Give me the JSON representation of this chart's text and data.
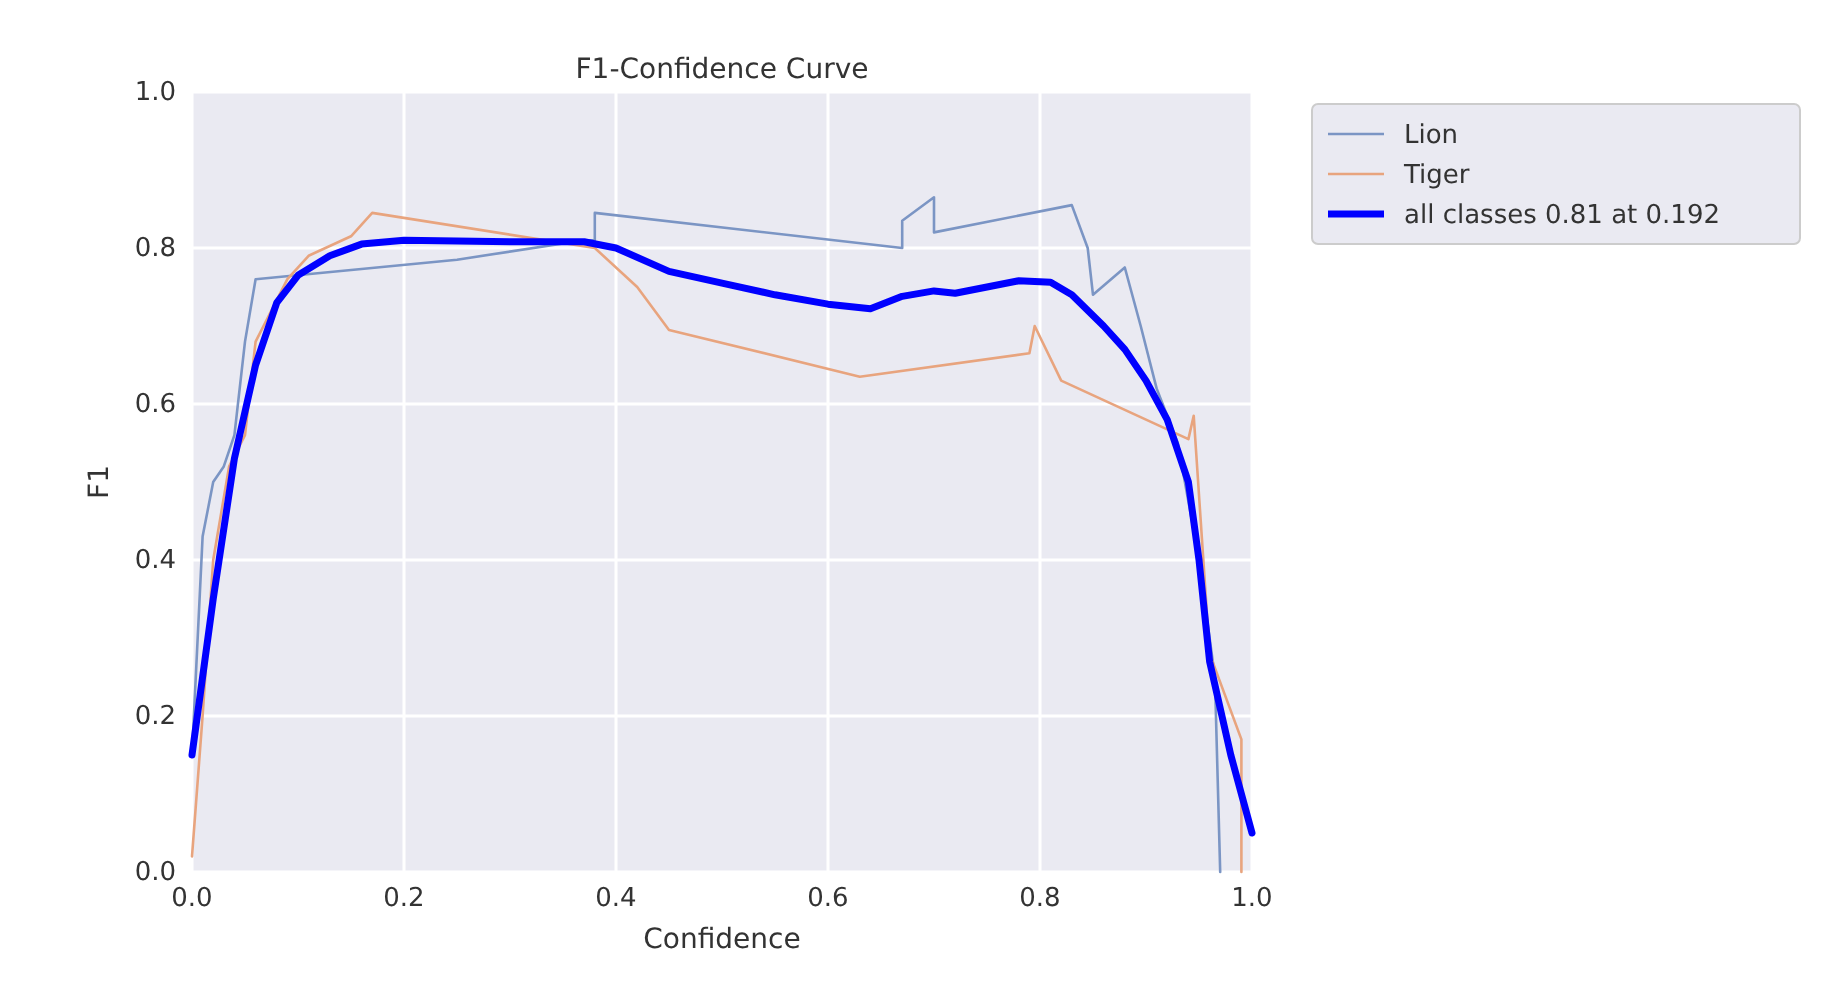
{
  "chart_data": {
    "type": "line",
    "title": "F1-Confidence Curve",
    "xlabel": "Confidence",
    "ylabel": "F1",
    "xlim": [
      0,
      1
    ],
    "ylim": [
      0,
      1
    ],
    "xticks": [
      {
        "value": 0,
        "label": "0.0"
      },
      {
        "value": 0.2,
        "label": "0.2"
      },
      {
        "value": 0.4,
        "label": "0.4"
      },
      {
        "value": 0.6,
        "label": "0.6"
      },
      {
        "value": 0.8,
        "label": "0.8"
      },
      {
        "value": 1,
        "label": "1.0"
      }
    ],
    "yticks": [
      {
        "value": 0,
        "label": "0.0"
      },
      {
        "value": 0.2,
        "label": "0.2"
      },
      {
        "value": 0.4,
        "label": "0.4"
      },
      {
        "value": 0.6,
        "label": "0.6"
      },
      {
        "value": 0.8,
        "label": "0.8"
      },
      {
        "value": 1,
        "label": "1.0"
      }
    ],
    "grid": true,
    "legend": "top right",
    "line_style": "solid",
    "series": [
      {
        "name": "Lion",
        "color": "#7b95c4",
        "x": [
          0,
          0.01,
          0.02,
          0.03,
          0.04,
          0.05,
          0.06,
          0.25,
          0.37,
          0.38,
          0.38,
          0.67,
          0.67,
          0.7,
          0.7,
          0.83,
          0.845,
          0.85,
          0.88,
          0.895,
          0.91,
          0.93,
          0.95,
          0.965,
          0.97
        ],
        "values": [
          0.15,
          0.43,
          0.5,
          0.52,
          0.56,
          0.68,
          0.76,
          0.785,
          0.81,
          0.81,
          0.845,
          0.8,
          0.835,
          0.865,
          0.82,
          0.855,
          0.8,
          0.74,
          0.775,
          0.7,
          0.62,
          0.55,
          0.4,
          0.25,
          0
        ]
      },
      {
        "name": "Tiger",
        "color": "#e8a47e",
        "x": [
          0,
          0.01,
          0.02,
          0.035,
          0.05,
          0.06,
          0.09,
          0.11,
          0.15,
          0.17,
          0.38,
          0.42,
          0.45,
          0.63,
          0.79,
          0.795,
          0.82,
          0.94,
          0.945,
          0.96,
          0.99,
          0.99
        ],
        "values": [
          0.02,
          0.2,
          0.4,
          0.52,
          0.56,
          0.68,
          0.76,
          0.79,
          0.815,
          0.845,
          0.8,
          0.75,
          0.695,
          0.635,
          0.665,
          0.7,
          0.63,
          0.555,
          0.585,
          0.28,
          0.17,
          0
        ]
      },
      {
        "name": "all classes 0.81 at 0.192",
        "color": "#0000ff",
        "x": [
          0,
          0.02,
          0.04,
          0.06,
          0.08,
          0.1,
          0.13,
          0.16,
          0.2,
          0.3,
          0.37,
          0.4,
          0.45,
          0.5,
          0.55,
          0.6,
          0.64,
          0.67,
          0.7,
          0.72,
          0.75,
          0.78,
          0.81,
          0.83,
          0.86,
          0.88,
          0.9,
          0.92,
          0.94,
          0.95,
          0.96,
          0.98,
          1
        ],
        "values": [
          0.15,
          0.35,
          0.53,
          0.65,
          0.73,
          0.765,
          0.79,
          0.805,
          0.81,
          0.808,
          0.808,
          0.8,
          0.77,
          0.755,
          0.74,
          0.728,
          0.722,
          0.738,
          0.745,
          0.742,
          0.75,
          0.758,
          0.756,
          0.74,
          0.7,
          0.67,
          0.63,
          0.58,
          0.5,
          0.4,
          0.27,
          0.15,
          0.05
        ]
      }
    ]
  }
}
